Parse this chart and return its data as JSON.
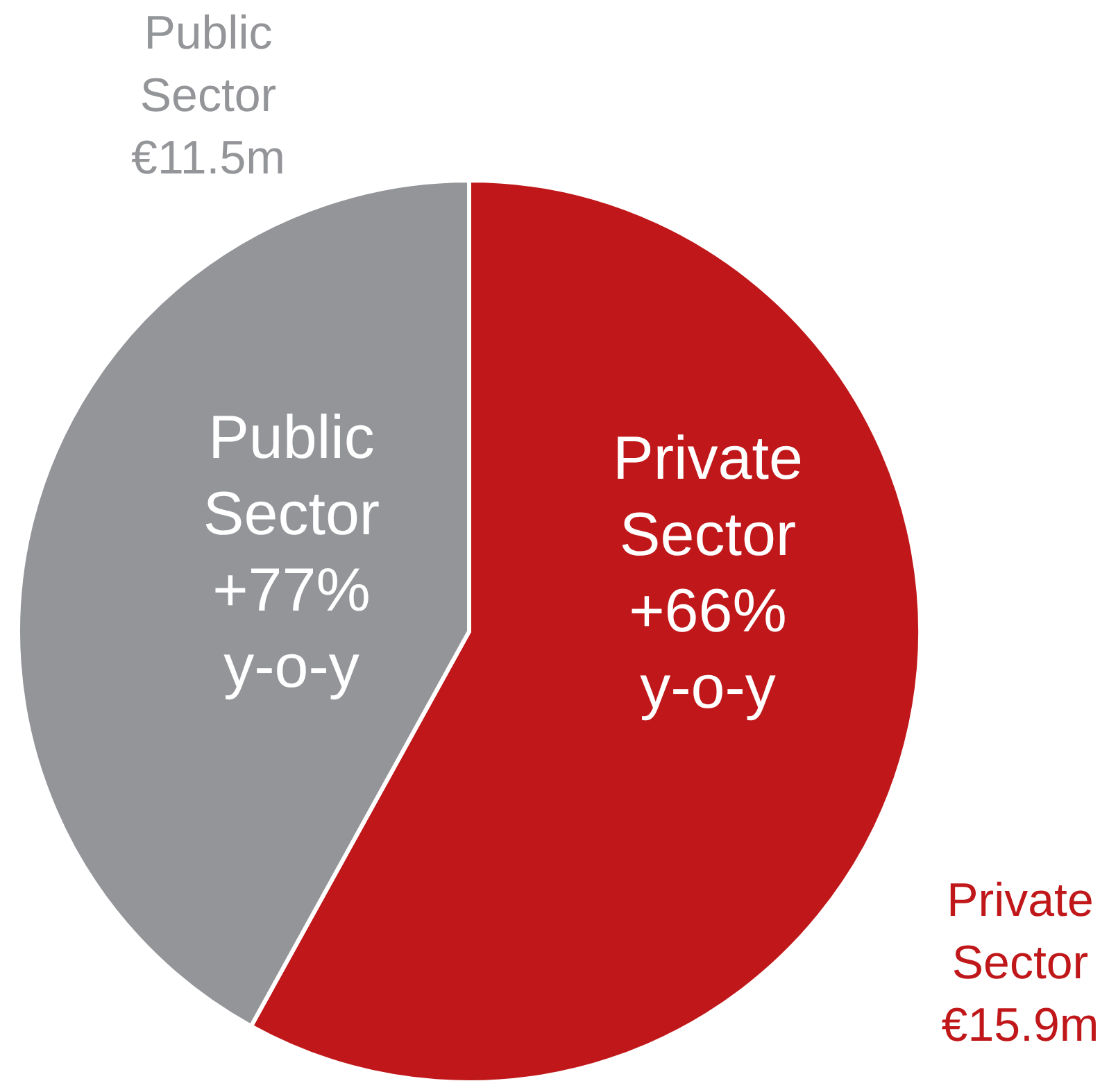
{
  "chart_data": {
    "type": "pie",
    "categories": [
      "Private Sector",
      "Public Sector"
    ],
    "values": [
      15.9,
      11.5
    ],
    "colors": [
      "#c0181a",
      "#939598"
    ],
    "value_labels": [
      "€15.9m",
      "€11.5m"
    ],
    "annotations": [
      "+66% y-o-y",
      "+77% y-o-y"
    ]
  }
}
